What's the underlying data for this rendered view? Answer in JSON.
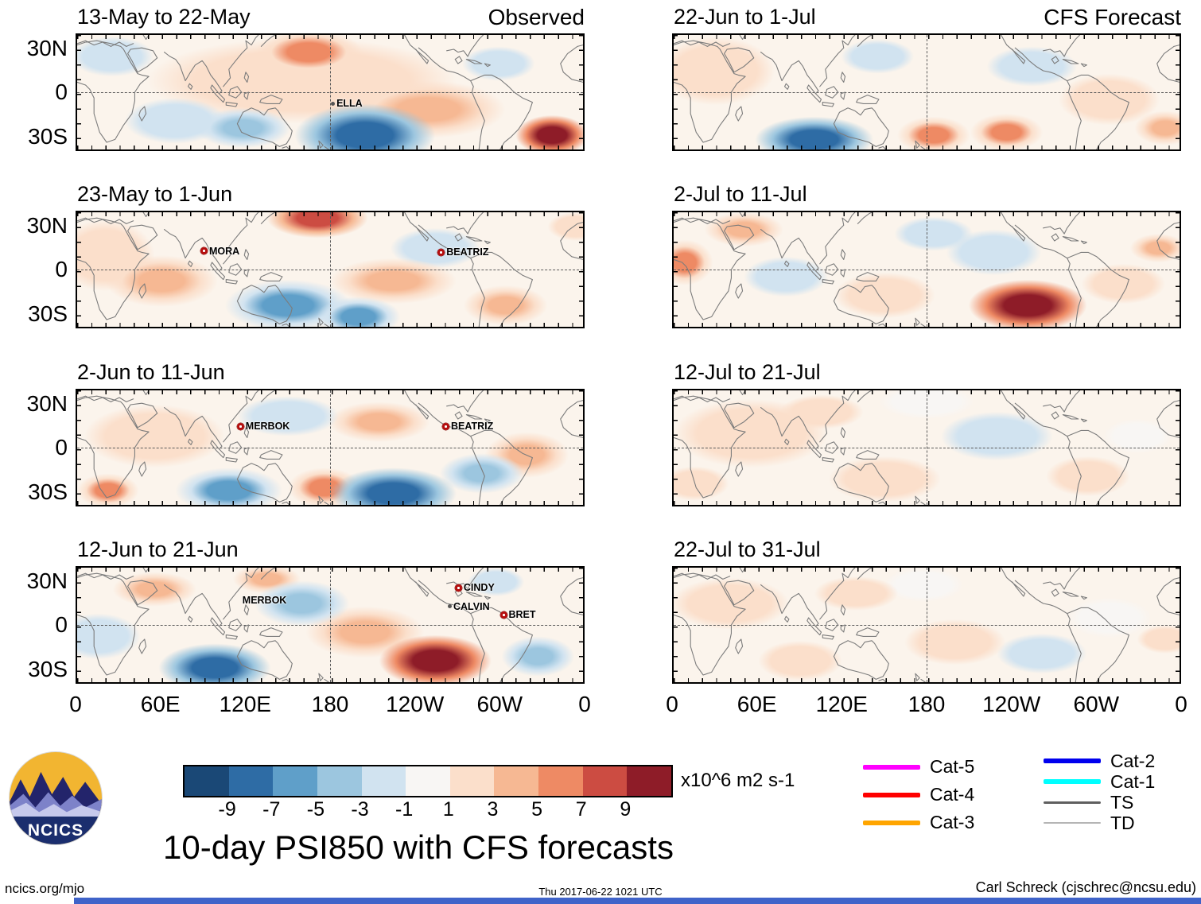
{
  "main_title": "10-day PSI850 with CFS forecasts",
  "logo_text": "NCICS",
  "footer": {
    "left": "ncics.org/mjo",
    "center": "Thu 2017-06-22 1021 UTC",
    "right": "Carl Schreck (cjschrec@ncsu.edu)"
  },
  "legend": {
    "items": [
      {
        "label": "Cat-5",
        "color": "#ff00ff",
        "thickness": 6
      },
      {
        "label": "Cat-4",
        "color": "#ff0000",
        "thickness": 6
      },
      {
        "label": "Cat-3",
        "color": "#ffa500",
        "thickness": 6
      },
      {
        "label": "Cat-2",
        "color": "#0000ee",
        "thickness": 6
      },
      {
        "label": "Cat-1",
        "color": "#00ffff",
        "thickness": 6
      },
      {
        "label": "TS",
        "color": "#5f5f5f",
        "thickness": 3
      },
      {
        "label": "TD",
        "color": "#b5b5b5",
        "thickness": 2
      }
    ]
  },
  "chart_data": {
    "type": "heatmap",
    "subtype": "filled-contour global map panels (anomaly field)",
    "variable": "PSI850 anomaly",
    "units_label": "x10^6 m2 s-1",
    "lon_range": [
      0,
      360
    ],
    "lat_range": [
      -40,
      40
    ],
    "x_tick_labels": [
      "0",
      "60E",
      "120E",
      "180",
      "120W",
      "60W",
      "0"
    ],
    "y_tick_labels": [
      "30N",
      "0",
      "30S"
    ],
    "grid": {
      "equator_dashed": true,
      "dateline_dashed": true
    },
    "columns": [
      {
        "heading": "Observed"
      },
      {
        "heading": "CFS Forecast"
      }
    ],
    "colorbar": {
      "tick_labels": [
        "-9",
        "-7",
        "-5",
        "-3",
        "-1",
        "1",
        "3",
        "5",
        "7",
        "9"
      ],
      "colors": [
        "#1a4876",
        "#2e6ca5",
        "#5f9fc9",
        "#9cc6df",
        "#d1e3f0",
        "#f8f6f4",
        "#fbdfcb",
        "#f6b893",
        "#ee8a64",
        "#cc4c42",
        "#8e1c28"
      ]
    },
    "anomaly_center_format": [
      "lon_deg_east_0_360",
      "lat_deg",
      "value_x10^6_m2_s-1",
      "radius_lon_deg",
      "radius_lat_deg"
    ],
    "panels": [
      {
        "id": "obs-1",
        "column": 0,
        "title": "13-May to 22-May",
        "storms": [
          {
            "name": "ELLA",
            "lon": 183,
            "lat": -8,
            "marker": "dot"
          }
        ],
        "anomaly_centers": [
          [
            205,
            -30,
            -8,
            50,
            22
          ],
          [
            338,
            -30,
            9,
            26,
            14
          ],
          [
            165,
            28,
            5,
            38,
            16
          ],
          [
            118,
            -25,
            -4,
            34,
            14
          ],
          [
            70,
            -20,
            -3,
            36,
            16
          ],
          [
            250,
            -12,
            3,
            55,
            20
          ],
          [
            25,
            25,
            -2,
            30,
            14
          ],
          [
            300,
            20,
            -2,
            26,
            12
          ],
          [
            160,
            8,
            2,
            110,
            30
          ]
        ]
      },
      {
        "id": "obs-2",
        "column": 0,
        "title": "23-May to 1-Jun",
        "storms": [
          {
            "name": "MORA",
            "lon": 90,
            "lat": 13,
            "marker": "hurricane"
          },
          {
            "name": "BEATRIZ",
            "lon": 259,
            "lat": 12,
            "marker": "hurricane"
          }
        ],
        "anomaly_centers": [
          [
            171,
            36,
            8,
            36,
            14
          ],
          [
            150,
            -25,
            -6,
            45,
            18
          ],
          [
            200,
            -33,
            -7,
            30,
            14
          ],
          [
            60,
            -8,
            3,
            40,
            18
          ],
          [
            255,
            15,
            -2,
            32,
            14
          ],
          [
            305,
            -25,
            3,
            30,
            14
          ],
          [
            225,
            -8,
            3,
            45,
            16
          ],
          [
            20,
            10,
            2,
            35,
            25
          ],
          [
            355,
            30,
            2,
            20,
            10
          ]
        ]
      },
      {
        "id": "obs-3",
        "column": 0,
        "title": "2-Jun to 11-Jun",
        "storms": [
          {
            "name": "MERBOK",
            "lon": 116,
            "lat": 15,
            "marker": "hurricane"
          },
          {
            "name": "BEATRIZ",
            "lon": 262,
            "lat": 15,
            "marker": "hurricane"
          }
        ],
        "anomaly_centers": [
          [
            225,
            -32,
            -9,
            45,
            18
          ],
          [
            108,
            -30,
            -7,
            38,
            16
          ],
          [
            176,
            -28,
            5,
            26,
            14
          ],
          [
            288,
            -18,
            -4,
            30,
            14
          ],
          [
            22,
            -30,
            5,
            22,
            12
          ],
          [
            150,
            22,
            -3,
            36,
            14
          ],
          [
            215,
            18,
            3,
            36,
            14
          ],
          [
            55,
            8,
            2,
            50,
            22
          ],
          [
            320,
            -5,
            3,
            30,
            16
          ]
        ]
      },
      {
        "id": "obs-4",
        "column": 0,
        "title": "12-Jun to 21-Jun",
        "storms": [
          {
            "name": "MERBOK",
            "lon": 120,
            "lat": 17,
            "marker": "none"
          },
          {
            "name": "CINDY",
            "lon": 271,
            "lat": 26,
            "marker": "hurricane"
          },
          {
            "name": "CALVIN",
            "lon": 266,
            "lat": 13,
            "marker": "dot"
          },
          {
            "name": "BRET",
            "lon": 303,
            "lat": 7,
            "marker": "hurricane"
          }
        ],
        "anomaly_centers": [
          [
            255,
            -25,
            9,
            40,
            18
          ],
          [
            98,
            -30,
            -8,
            40,
            17
          ],
          [
            160,
            15,
            -5,
            34,
            16
          ],
          [
            135,
            32,
            4,
            24,
            10
          ],
          [
            205,
            -5,
            3,
            42,
            18
          ],
          [
            328,
            -22,
            -4,
            26,
            14
          ],
          [
            55,
            25,
            3,
            30,
            12
          ],
          [
            15,
            -8,
            -2,
            30,
            16
          ],
          [
            298,
            30,
            -3,
            20,
            10
          ]
        ]
      },
      {
        "id": "cfs-1",
        "column": 1,
        "title": "22-Jun to 1-Jul",
        "storms": [],
        "anomaly_centers": [
          [
            100,
            -33,
            -9,
            42,
            16
          ],
          [
            185,
            -30,
            6,
            26,
            13
          ],
          [
            237,
            -28,
            5,
            26,
            13
          ],
          [
            30,
            15,
            2,
            42,
            24
          ],
          [
            255,
            18,
            -2,
            32,
            14
          ],
          [
            145,
            25,
            -2,
            26,
            12
          ],
          [
            310,
            -5,
            2,
            36,
            18
          ],
          [
            350,
            -25,
            3,
            22,
            12
          ]
        ]
      },
      {
        "id": "cfs-2",
        "column": 1,
        "title": "2-Jul to 11-Jul",
        "storms": [],
        "anomaly_centers": [
          [
            252,
            -25,
            9,
            42,
            18
          ],
          [
            8,
            5,
            6,
            20,
            16
          ],
          [
            228,
            12,
            -3,
            34,
            16
          ],
          [
            80,
            -5,
            -2,
            30,
            14
          ],
          [
            150,
            -18,
            2,
            36,
            16
          ],
          [
            320,
            -10,
            2,
            30,
            14
          ],
          [
            50,
            28,
            3,
            28,
            12
          ],
          [
            185,
            25,
            -2,
            28,
            12
          ],
          [
            345,
            15,
            3,
            20,
            10
          ]
        ]
      },
      {
        "id": "cfs-3",
        "column": 1,
        "title": "12-Jul to 21-Jul",
        "storms": [],
        "anomaly_centers": [
          [
            55,
            10,
            2,
            55,
            24
          ],
          [
            230,
            8,
            -2,
            40,
            17
          ],
          [
            150,
            -22,
            2,
            40,
            16
          ],
          [
            295,
            -20,
            2,
            30,
            14
          ],
          [
            15,
            -25,
            2,
            24,
            12
          ],
          [
            180,
            32,
            -1,
            34,
            12
          ],
          [
            330,
            8,
            -1,
            24,
            12
          ],
          [
            105,
            25,
            2,
            30,
            12
          ]
        ]
      },
      {
        "id": "cfs-4",
        "column": 1,
        "title": "22-Jul to 31-Jul",
        "storms": [],
        "anomaly_centers": [
          [
            40,
            15,
            2,
            42,
            18
          ],
          [
            130,
            22,
            2,
            30,
            12
          ],
          [
            200,
            -12,
            2,
            36,
            16
          ],
          [
            262,
            -20,
            -2,
            32,
            14
          ],
          [
            310,
            5,
            -1,
            30,
            14
          ],
          [
            178,
            28,
            -1,
            28,
            12
          ],
          [
            90,
            -25,
            2,
            30,
            14
          ],
          [
            350,
            -10,
            2,
            20,
            10
          ]
        ]
      }
    ]
  }
}
